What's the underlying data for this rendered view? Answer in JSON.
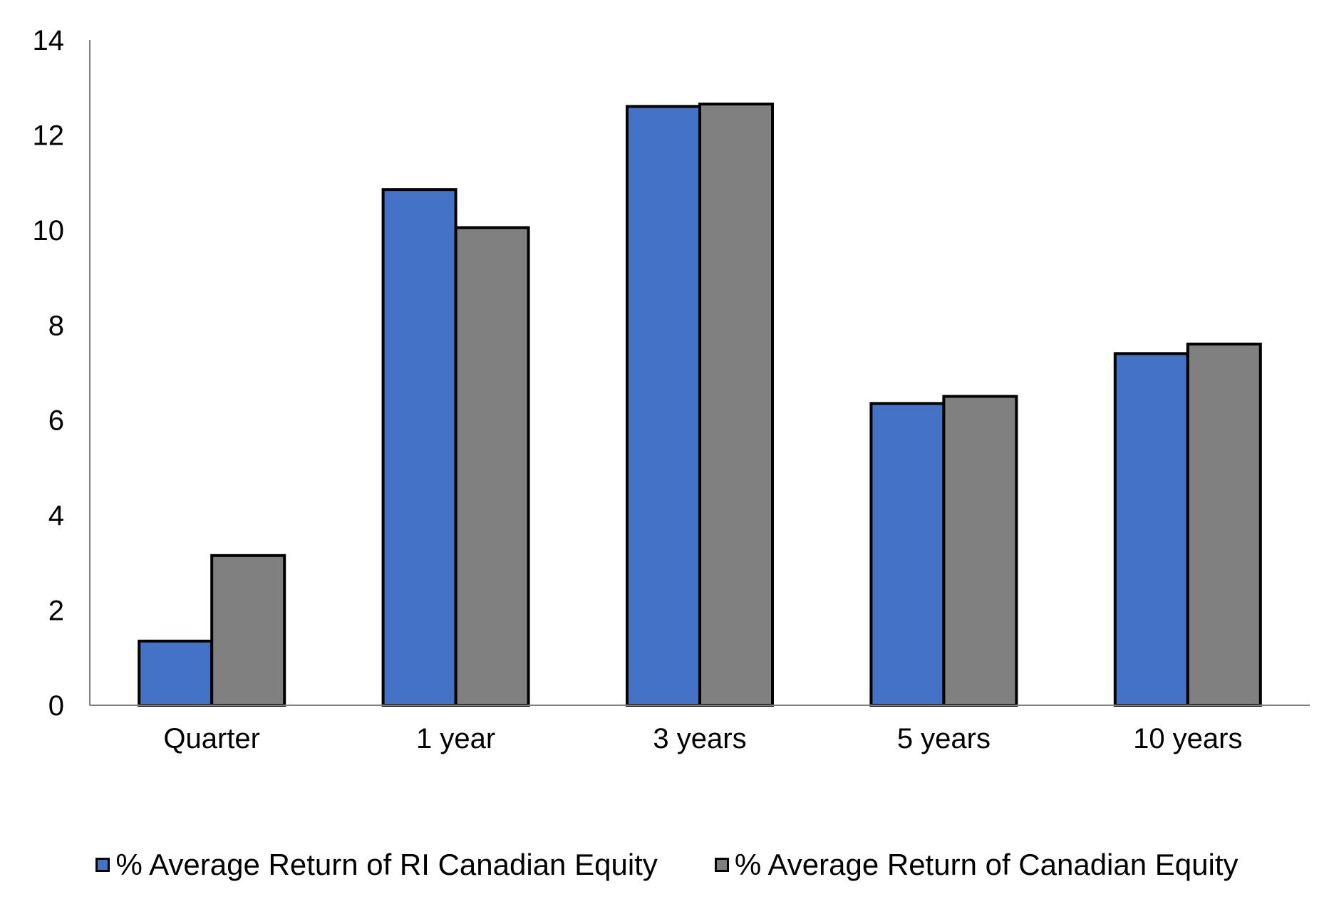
{
  "chart_data": {
    "type": "bar",
    "title": "",
    "xlabel": "",
    "ylabel": "",
    "categories": [
      "Quarter",
      "1 year",
      "3 years",
      "5 years",
      "10 years"
    ],
    "ylim": [
      0,
      14
    ],
    "yticks": [
      0,
      2,
      4,
      6,
      8,
      10,
      12,
      14
    ],
    "grid": false,
    "legend_position": "bottom",
    "series": [
      {
        "name": "% Average Return of RI Canadian Equity",
        "color": "#4472C4",
        "values": [
          1.35,
          10.85,
          12.6,
          6.35,
          7.4
        ]
      },
      {
        "name": "% Average Return of Canadian Equity",
        "color": "#808080",
        "values": [
          3.15,
          10.05,
          12.65,
          6.5,
          7.6
        ]
      }
    ]
  }
}
